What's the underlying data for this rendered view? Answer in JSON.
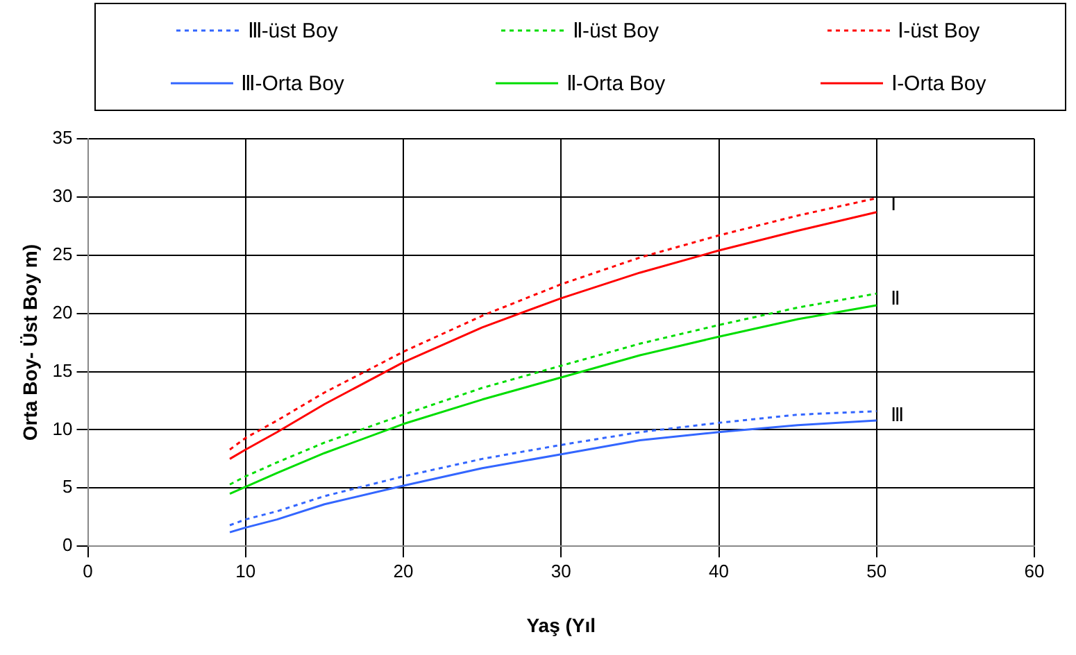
{
  "chart_data": {
    "type": "line",
    "xlabel": "Yaş (Yıl",
    "ylabel": "Orta Boy- Üst Boy m)",
    "x": [
      9,
      10,
      12,
      15,
      20,
      25,
      30,
      35,
      40,
      45,
      50
    ],
    "series": [
      {
        "name": "Ⅲ-üst Boy",
        "color": "#3366ff",
        "line_style": "dashed",
        "values": [
          1.8,
          2.3,
          3.0,
          4.3,
          6.0,
          7.5,
          8.7,
          9.8,
          10.6,
          11.3,
          11.6
        ]
      },
      {
        "name": "Ⅱ-üst Boy",
        "color": "#00dd00",
        "line_style": "dashed",
        "values": [
          5.3,
          6.0,
          7.2,
          8.9,
          11.3,
          13.6,
          15.5,
          17.4,
          19.0,
          20.5,
          21.7
        ]
      },
      {
        "name": "Ⅰ-üst Boy",
        "color": "#ff0000",
        "line_style": "dashed",
        "values": [
          8.3,
          9.3,
          10.8,
          13.2,
          16.7,
          19.8,
          22.5,
          24.8,
          26.7,
          28.4,
          29.9
        ]
      },
      {
        "name": "Ⅲ-Orta Boy",
        "color": "#3366ff",
        "line_style": "solid",
        "values": [
          1.2,
          1.6,
          2.3,
          3.6,
          5.2,
          6.7,
          7.9,
          9.1,
          9.8,
          10.4,
          10.8
        ]
      },
      {
        "name": "Ⅱ-Orta Boy",
        "color": "#00dd00",
        "line_style": "solid",
        "values": [
          4.5,
          5.1,
          6.3,
          8.0,
          10.5,
          12.6,
          14.5,
          16.4,
          18.0,
          19.5,
          20.7
        ]
      },
      {
        "name": "Ⅰ-Orta Boy",
        "color": "#ff0000",
        "line_style": "solid",
        "values": [
          7.5,
          8.3,
          9.8,
          12.2,
          15.8,
          18.8,
          21.3,
          23.5,
          25.4,
          27.1,
          28.7
        ]
      }
    ],
    "annotations": [
      "Ⅰ",
      "Ⅱ",
      "Ⅲ"
    ],
    "xlim": [
      0,
      60
    ],
    "xticks": [
      0,
      10,
      20,
      30,
      40,
      50,
      60
    ],
    "ylim": [
      0,
      35
    ],
    "yticks": [
      0,
      5,
      10,
      15,
      20,
      25,
      30,
      35
    ],
    "grid": true,
    "legend": "top",
    "marker": "none"
  }
}
